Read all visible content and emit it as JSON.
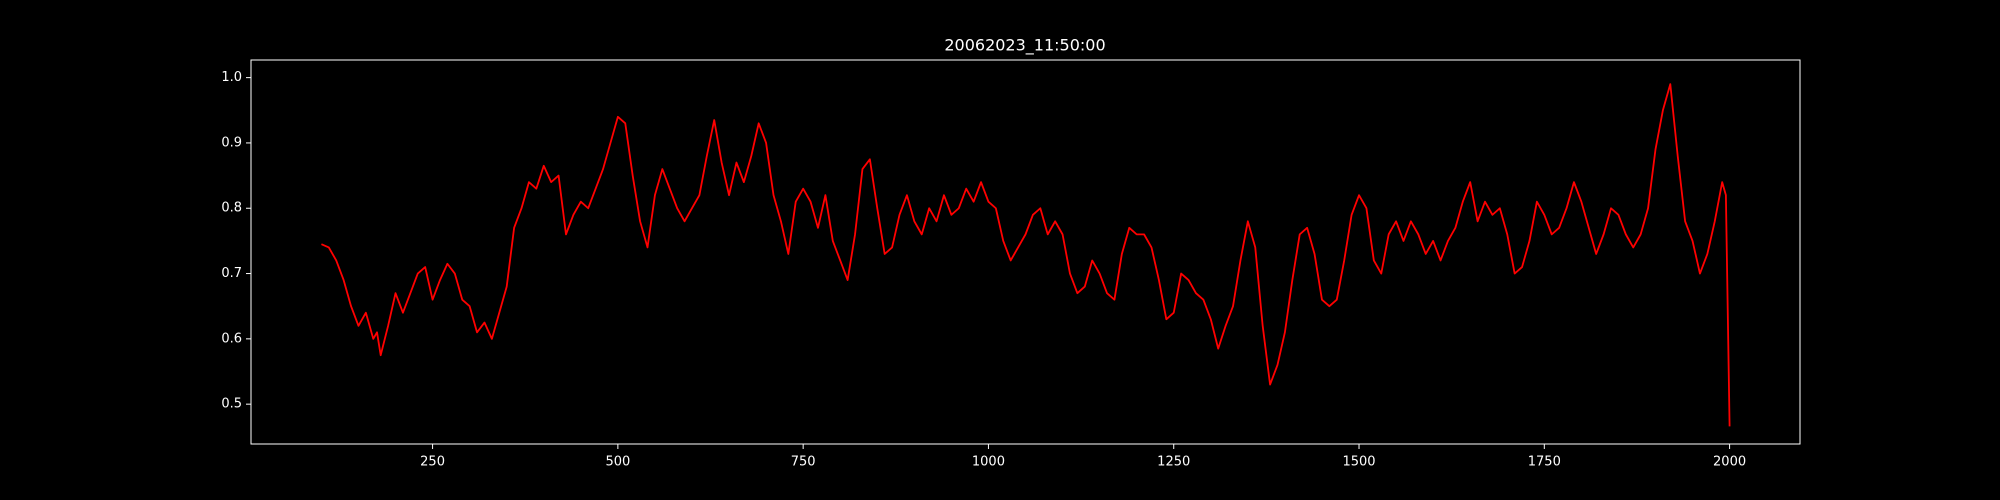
{
  "chart_data": {
    "type": "line",
    "title": "20062023_11:50:00",
    "x": [
      100,
      110,
      120,
      130,
      140,
      150,
      160,
      170,
      175,
      180,
      190,
      200,
      210,
      220,
      230,
      240,
      250,
      260,
      270,
      280,
      290,
      300,
      310,
      320,
      330,
      340,
      350,
      360,
      370,
      380,
      390,
      400,
      410,
      420,
      430,
      440,
      450,
      460,
      470,
      480,
      490,
      500,
      510,
      520,
      530,
      540,
      550,
      560,
      570,
      580,
      590,
      600,
      610,
      620,
      630,
      640,
      650,
      660,
      670,
      680,
      690,
      700,
      710,
      720,
      730,
      740,
      750,
      760,
      770,
      780,
      790,
      800,
      810,
      820,
      830,
      840,
      850,
      860,
      870,
      880,
      890,
      900,
      910,
      920,
      930,
      940,
      950,
      960,
      970,
      980,
      990,
      1000,
      1010,
      1020,
      1030,
      1040,
      1050,
      1060,
      1070,
      1080,
      1090,
      1100,
      1110,
      1120,
      1130,
      1140,
      1150,
      1160,
      1170,
      1180,
      1190,
      1200,
      1210,
      1220,
      1230,
      1240,
      1250,
      1260,
      1270,
      1280,
      1290,
      1300,
      1310,
      1320,
      1330,
      1340,
      1350,
      1360,
      1370,
      1380,
      1390,
      1400,
      1410,
      1420,
      1430,
      1440,
      1450,
      1460,
      1470,
      1480,
      1490,
      1500,
      1510,
      1520,
      1530,
      1540,
      1550,
      1560,
      1570,
      1580,
      1590,
      1600,
      1610,
      1620,
      1630,
      1640,
      1650,
      1660,
      1670,
      1680,
      1690,
      1700,
      1710,
      1720,
      1730,
      1740,
      1750,
      1760,
      1770,
      1780,
      1790,
      1800,
      1810,
      1820,
      1830,
      1840,
      1850,
      1860,
      1870,
      1880,
      1890,
      1900,
      1910,
      1920,
      1930,
      1940,
      1950,
      1960,
      1970,
      1980,
      1990,
      1995,
      2000
    ],
    "series": [
      {
        "color": "#ff0000",
        "values": [
          0.745,
          0.74,
          0.72,
          0.69,
          0.65,
          0.62,
          0.64,
          0.6,
          0.61,
          0.575,
          0.62,
          0.67,
          0.64,
          0.67,
          0.7,
          0.71,
          0.66,
          0.69,
          0.715,
          0.7,
          0.66,
          0.65,
          0.61,
          0.625,
          0.6,
          0.64,
          0.68,
          0.77,
          0.8,
          0.84,
          0.83,
          0.865,
          0.84,
          0.85,
          0.76,
          0.79,
          0.81,
          0.8,
          0.83,
          0.86,
          0.9,
          0.94,
          0.93,
          0.85,
          0.78,
          0.74,
          0.82,
          0.86,
          0.83,
          0.8,
          0.78,
          0.8,
          0.82,
          0.88,
          0.935,
          0.87,
          0.82,
          0.87,
          0.84,
          0.88,
          0.93,
          0.9,
          0.82,
          0.78,
          0.73,
          0.81,
          0.83,
          0.81,
          0.77,
          0.82,
          0.75,
          0.72,
          0.69,
          0.76,
          0.86,
          0.875,
          0.8,
          0.73,
          0.74,
          0.79,
          0.82,
          0.78,
          0.76,
          0.8,
          0.78,
          0.82,
          0.79,
          0.8,
          0.83,
          0.81,
          0.84,
          0.81,
          0.8,
          0.75,
          0.72,
          0.74,
          0.76,
          0.79,
          0.8,
          0.76,
          0.78,
          0.76,
          0.7,
          0.67,
          0.68,
          0.72,
          0.7,
          0.67,
          0.66,
          0.73,
          0.77,
          0.76,
          0.76,
          0.74,
          0.69,
          0.63,
          0.64,
          0.7,
          0.69,
          0.67,
          0.66,
          0.63,
          0.585,
          0.62,
          0.65,
          0.72,
          0.78,
          0.74,
          0.62,
          0.53,
          0.56,
          0.61,
          0.69,
          0.76,
          0.77,
          0.73,
          0.66,
          0.65,
          0.66,
          0.72,
          0.79,
          0.82,
          0.8,
          0.72,
          0.7,
          0.76,
          0.78,
          0.75,
          0.78,
          0.76,
          0.73,
          0.75,
          0.72,
          0.75,
          0.77,
          0.81,
          0.84,
          0.78,
          0.81,
          0.79,
          0.8,
          0.76,
          0.7,
          0.71,
          0.75,
          0.81,
          0.79,
          0.76,
          0.77,
          0.8,
          0.84,
          0.81,
          0.77,
          0.73,
          0.76,
          0.8,
          0.79,
          0.76,
          0.74,
          0.76,
          0.8,
          0.89,
          0.95,
          0.99,
          0.88,
          0.78,
          0.75,
          0.7,
          0.73,
          0.78,
          0.84,
          0.82,
          0.466
        ]
      }
    ],
    "xlim": [
      5,
      2095
    ],
    "xticks": [
      250,
      500,
      750,
      1000,
      1250,
      1500,
      1750,
      2000
    ],
    "ylim": [
      0.439,
      1.027
    ],
    "yticks": [
      0.5,
      0.6,
      0.7,
      0.8,
      0.9,
      {
        "value": 1,
        "label": "1.0"
      }
    ]
  }
}
